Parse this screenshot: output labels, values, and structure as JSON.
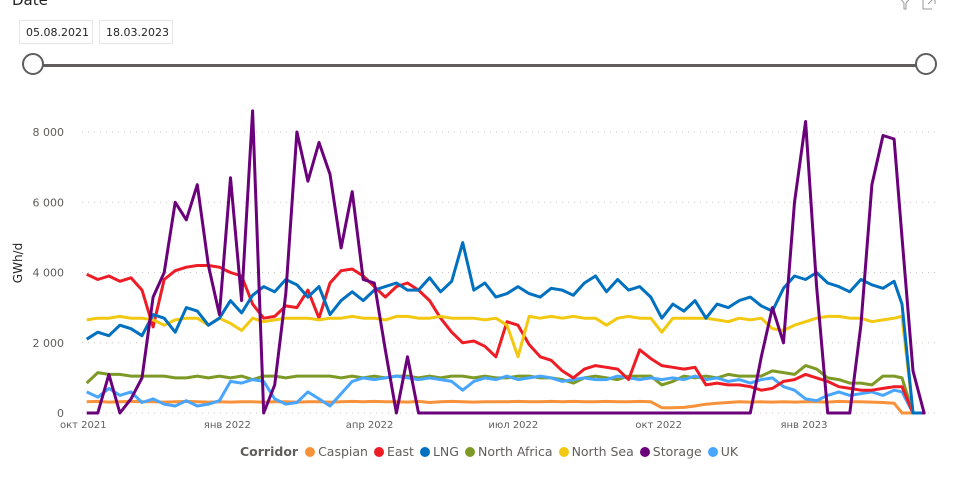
{
  "slicer": {
    "title": "Date",
    "start_date": "05.08.2021",
    "end_date": "18.03.2023",
    "range_selected": [
      0,
      1
    ]
  },
  "header": {
    "icons": [
      "filter-icon",
      "focus-mode-icon"
    ]
  },
  "chart_data": {
    "type": "line",
    "title": "",
    "xlabel": "",
    "ylabel": "GWh/d",
    "ylim": [
      0,
      8000
    ],
    "yticks": [
      0,
      2000,
      4000,
      6000,
      8000
    ],
    "ytick_labels": [
      "0",
      "2 000",
      "4 000",
      "6 000",
      "8 000"
    ],
    "xlim": [
      "2021-10-01",
      "2023-03-23"
    ],
    "xticks": [
      "2021-10-01",
      "2022-01-01",
      "2022-04-01",
      "2022-07-01",
      "2022-10-01",
      "2023-01-01"
    ],
    "xtick_labels": [
      "окт 2021",
      "янв 2022",
      "апр 2022",
      "июл 2022",
      "окт 2022",
      "янв 2023"
    ],
    "grid": "horizontal-dotted",
    "legend_title": "Corridor",
    "legend_position": "bottom-center",
    "x": [
      "2021-09-27",
      "2021-10-04",
      "2021-10-11",
      "2021-10-18",
      "2021-10-25",
      "2021-11-01",
      "2021-11-08",
      "2021-11-15",
      "2021-11-22",
      "2021-11-29",
      "2021-12-06",
      "2021-12-13",
      "2021-12-20",
      "2021-12-27",
      "2022-01-03",
      "2022-01-10",
      "2022-01-17",
      "2022-01-24",
      "2022-01-31",
      "2022-02-07",
      "2022-02-14",
      "2022-02-21",
      "2022-02-28",
      "2022-03-07",
      "2022-03-14",
      "2022-03-21",
      "2022-03-28",
      "2022-04-04",
      "2022-04-11",
      "2022-04-18",
      "2022-04-25",
      "2022-05-02",
      "2022-05-09",
      "2022-05-16",
      "2022-05-23",
      "2022-05-30",
      "2022-06-06",
      "2022-06-13",
      "2022-06-20",
      "2022-06-27",
      "2022-07-04",
      "2022-07-11",
      "2022-07-18",
      "2022-07-25",
      "2022-08-01",
      "2022-08-08",
      "2022-08-15",
      "2022-08-22",
      "2022-08-29",
      "2022-09-05",
      "2022-09-12",
      "2022-09-19",
      "2022-09-26",
      "2022-10-03",
      "2022-10-10",
      "2022-10-17",
      "2022-10-24",
      "2022-10-31",
      "2022-11-07",
      "2022-11-14",
      "2022-11-21",
      "2022-11-28",
      "2022-12-05",
      "2022-12-12",
      "2022-12-19",
      "2022-12-26",
      "2023-01-02",
      "2023-01-09",
      "2023-01-16",
      "2023-01-23",
      "2023-01-30",
      "2023-02-06",
      "2023-02-13",
      "2023-02-20",
      "2023-02-27",
      "2023-03-04",
      "2023-03-11",
      "2023-03-18"
    ],
    "series": [
      {
        "name": "Caspian",
        "color": "#F7923A",
        "values": [
          330,
          320,
          330,
          310,
          320,
          330,
          320,
          320,
          310,
          320,
          330,
          320,
          310,
          320,
          310,
          320,
          320,
          310,
          320,
          320,
          310,
          320,
          320,
          310,
          320,
          330,
          320,
          330,
          320,
          320,
          310,
          330,
          300,
          320,
          330,
          320,
          310,
          320,
          320,
          320,
          330,
          320,
          320,
          330,
          320,
          330,
          320,
          320,
          330,
          320,
          320,
          330,
          320,
          150,
          150,
          160,
          200,
          250,
          280,
          300,
          320,
          310,
          320,
          310,
          320,
          310,
          320,
          320,
          310,
          330,
          320,
          320,
          310,
          300,
          280,
          0,
          0,
          0
        ]
      },
      {
        "name": "East",
        "color": "#EE1C25",
        "values": [
          3600,
          3950,
          3800,
          3900,
          3750,
          3850,
          3500,
          2450,
          3800,
          4050,
          4150,
          4200,
          4200,
          4150,
          4000,
          3900,
          3100,
          2700,
          2750,
          3050,
          3000,
          3500,
          2700,
          3700,
          4050,
          4100,
          3900,
          3600,
          3300,
          3600,
          3700,
          3500,
          3200,
          2700,
          2300,
          2000,
          2050,
          1900,
          1600,
          2600,
          2500,
          1950,
          1600,
          1500,
          1200,
          1000,
          1250,
          1350,
          1300,
          1250,
          950,
          1800,
          1550,
          1350,
          1300,
          1250,
          1300,
          800,
          850,
          800,
          800,
          750,
          650,
          700,
          900,
          950,
          1100,
          1000,
          900,
          750,
          700,
          650,
          650,
          700,
          750,
          750,
          0,
          0
        ]
      },
      {
        "name": "LNG",
        "color": "#0070C0",
        "values": [
          1800,
          2100,
          2300,
          2200,
          2500,
          2400,
          2200,
          2800,
          2700,
          2300,
          3000,
          2900,
          2500,
          2700,
          3200,
          2850,
          3350,
          3600,
          3450,
          3800,
          3650,
          3300,
          3600,
          2800,
          3200,
          3450,
          3200,
          3500,
          3600,
          3700,
          3500,
          3500,
          3850,
          3450,
          3750,
          4850,
          3500,
          3700,
          3300,
          3400,
          3600,
          3400,
          3300,
          3550,
          3500,
          3350,
          3700,
          3900,
          3450,
          3800,
          3500,
          3600,
          3300,
          2700,
          3100,
          2900,
          3200,
          2700,
          3100,
          3000,
          3200,
          3300,
          3050,
          2900,
          3550,
          3900,
          3800,
          4000,
          3700,
          3600,
          3450,
          3800,
          3650,
          3550,
          3750,
          3100,
          0,
          0
        ]
      },
      {
        "name": "North Africa",
        "color": "#7E9A26",
        "values": [
          1200,
          850,
          1150,
          1100,
          1100,
          1050,
          1050,
          1050,
          1050,
          1000,
          1000,
          1050,
          1000,
          1050,
          1000,
          1050,
          950,
          1050,
          1050,
          1000,
          1050,
          1050,
          1050,
          1050,
          1000,
          1050,
          1000,
          1050,
          1000,
          1050,
          1050,
          1000,
          1050,
          1000,
          1050,
          1050,
          1000,
          1050,
          1000,
          1000,
          1050,
          1050,
          1000,
          1000,
          950,
          850,
          1000,
          1050,
          1000,
          950,
          1050,
          1050,
          1050,
          800,
          900,
          1050,
          1000,
          1050,
          1000,
          1100,
          1050,
          1050,
          1050,
          1200,
          1150,
          1100,
          1350,
          1250,
          1000,
          950,
          850,
          850,
          800,
          1050,
          1050,
          1000,
          0,
          0
        ]
      },
      {
        "name": "North Sea",
        "color": "#F2C811",
        "values": [
          2600,
          2650,
          2700,
          2700,
          2750,
          2700,
          2700,
          2650,
          2500,
          2650,
          2700,
          2700,
          2500,
          2700,
          2550,
          2350,
          2700,
          2600,
          2650,
          2700,
          2700,
          2700,
          2650,
          2700,
          2700,
          2750,
          2700,
          2700,
          2650,
          2750,
          2750,
          2700,
          2700,
          2750,
          2700,
          2700,
          2700,
          2650,
          2700,
          2500,
          1600,
          2750,
          2700,
          2750,
          2700,
          2750,
          2700,
          2700,
          2500,
          2700,
          2750,
          2700,
          2700,
          2300,
          2700,
          2700,
          2700,
          2700,
          2650,
          2600,
          2700,
          2650,
          2700,
          2400,
          2350,
          2500,
          2600,
          2700,
          2750,
          2750,
          2700,
          2700,
          2600,
          2650,
          2700,
          2750,
          0,
          0
        ]
      },
      {
        "name": "Storage",
        "color": "#6B007B",
        "values": [
          0,
          0,
          0,
          1100,
          0,
          400,
          1000,
          3300,
          4000,
          6000,
          5500,
          6500,
          4200,
          2800,
          6700,
          3200,
          8600,
          0,
          800,
          3400,
          8000,
          6600,
          7700,
          6800,
          4700,
          6300,
          3800,
          3700,
          1800,
          0,
          1600,
          0,
          0,
          0,
          0,
          0,
          0,
          0,
          0,
          0,
          0,
          0,
          0,
          0,
          0,
          0,
          0,
          0,
          0,
          0,
          0,
          0,
          0,
          0,
          0,
          0,
          0,
          0,
          0,
          0,
          0,
          0,
          1600,
          3000,
          2000,
          6000,
          8300,
          3600,
          0,
          0,
          0,
          2500,
          6500,
          7900,
          7800,
          5000,
          1200,
          0
        ]
      },
      {
        "name": "UK",
        "color": "#48A6FF",
        "values": [
          750,
          600,
          450,
          700,
          500,
          600,
          300,
          400,
          250,
          200,
          350,
          200,
          250,
          350,
          900,
          850,
          950,
          900,
          400,
          250,
          300,
          600,
          400,
          200,
          550,
          900,
          1000,
          950,
          1000,
          1050,
          1000,
          950,
          1000,
          950,
          900,
          650,
          900,
          1000,
          950,
          1050,
          950,
          1000,
          1050,
          1000,
          900,
          950,
          1000,
          950,
          950,
          1050,
          1000,
          950,
          1000,
          950,
          1000,
          950,
          1050,
          950,
          1000,
          900,
          950,
          850,
          950,
          1000,
          750,
          650,
          400,
          350,
          500,
          600,
          500,
          550,
          600,
          500,
          650,
          600,
          0,
          0
        ]
      }
    ]
  }
}
